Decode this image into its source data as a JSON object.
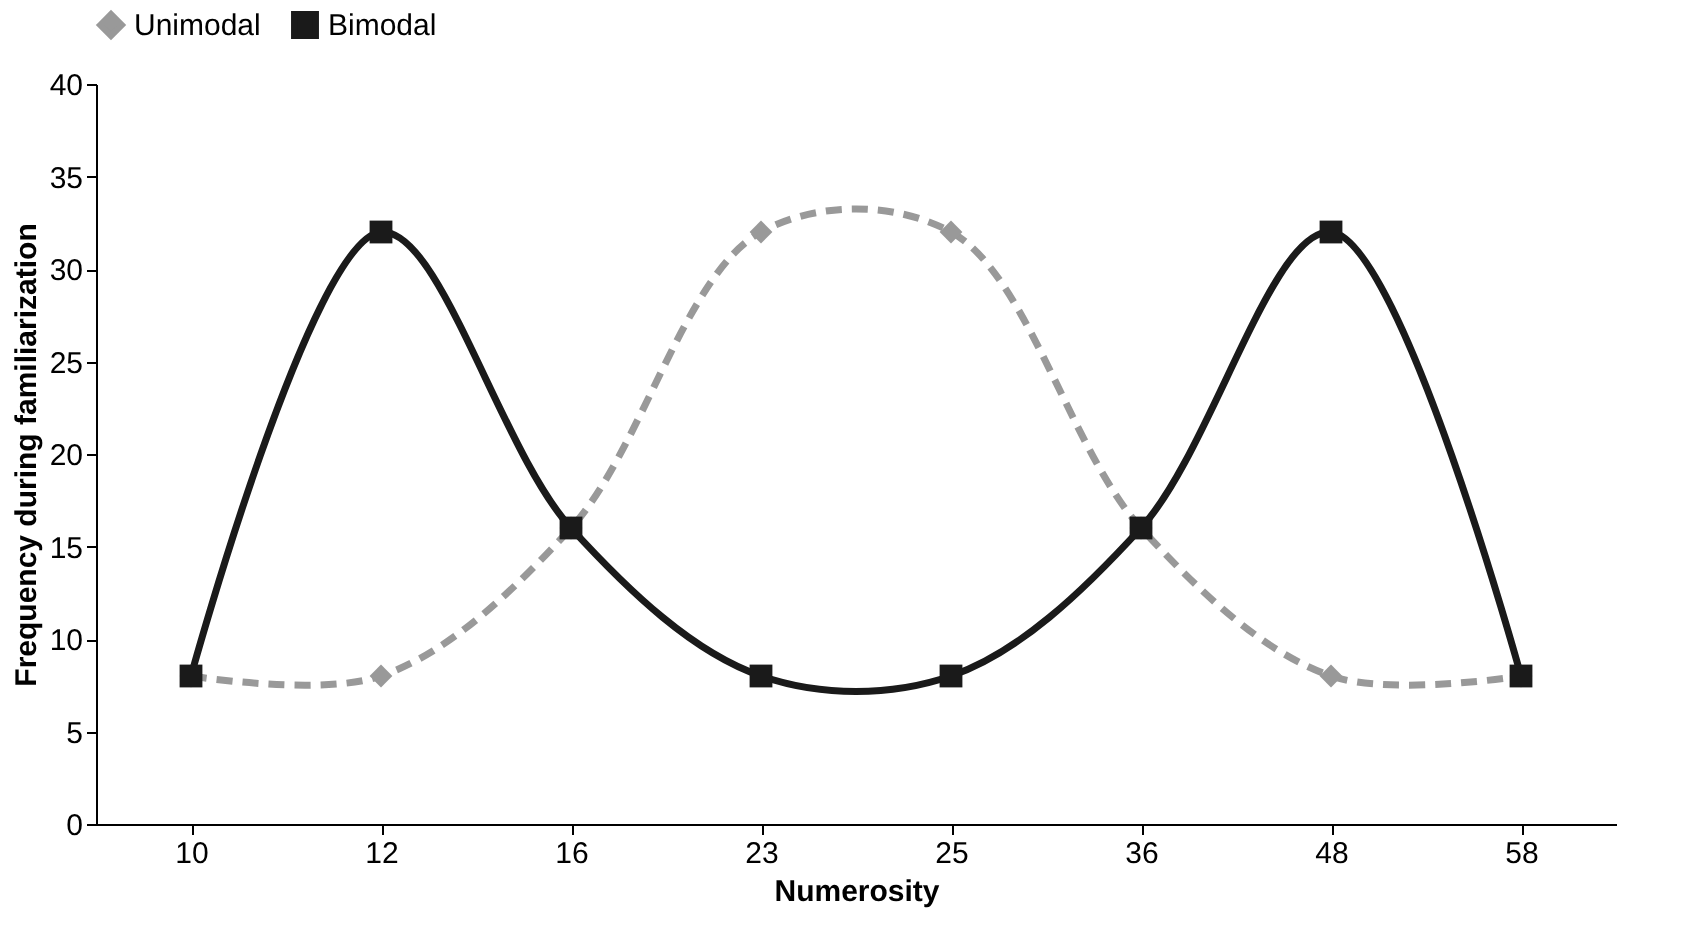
{
  "chart_data": {
    "type": "line",
    "xlabel": "Numerosity",
    "ylabel": "Frequency during familiarization",
    "categories": [
      "10",
      "12",
      "16",
      "23",
      "25",
      "36",
      "48",
      "58"
    ],
    "series": [
      {
        "name": "Unimodal",
        "color": "#999999",
        "line_style": "dashed",
        "marker": "diamond",
        "values": [
          8,
          8,
          16,
          32,
          32,
          16,
          8,
          8
        ]
      },
      {
        "name": "Bimodal",
        "color": "#1a1a1a",
        "line_style": "solid",
        "marker": "square",
        "values": [
          8,
          32,
          16,
          8,
          8,
          16,
          32,
          8
        ]
      }
    ],
    "ylim": [
      0,
      40
    ],
    "yticks": [
      0,
      5,
      10,
      15,
      20,
      25,
      30,
      35,
      40
    ],
    "grid": false,
    "legend": "top"
  }
}
